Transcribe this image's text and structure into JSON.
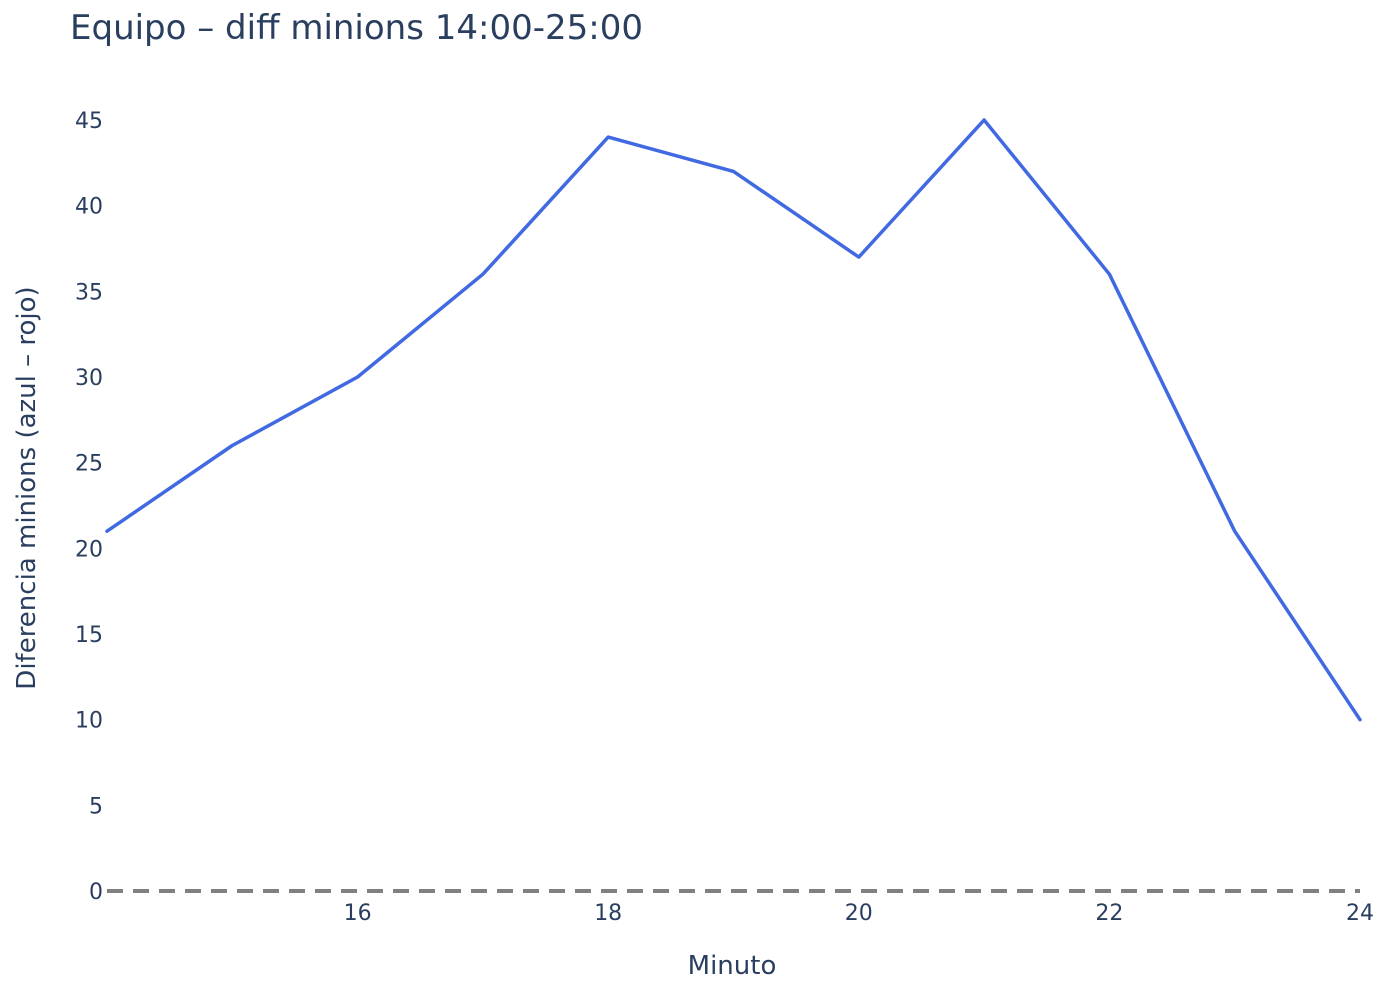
{
  "chart_data": {
    "type": "line",
    "title": "Equipo – diff minions 14:00-25:00",
    "xlabel": "Minuto",
    "ylabel": "Diferencia minions (azul – rojo)",
    "x": [
      14,
      15,
      16,
      17,
      18,
      19,
      20,
      21,
      22,
      23,
      24
    ],
    "series": [
      {
        "values": [
          21,
          26,
          30,
          36,
          44,
          42,
          37,
          45,
          36,
          21,
          10
        ],
        "color": "#4169e1"
      }
    ],
    "reference_line": {
      "y": 0,
      "style": "dashed",
      "color": "#808080"
    },
    "xlim": [
      14,
      24
    ],
    "ylim": [
      0,
      45
    ],
    "xticks": [
      16,
      18,
      20,
      22,
      24
    ],
    "yticks": [
      0,
      5,
      10,
      15,
      20,
      25,
      30,
      35,
      40,
      45
    ],
    "grid": false,
    "legend": "none"
  }
}
